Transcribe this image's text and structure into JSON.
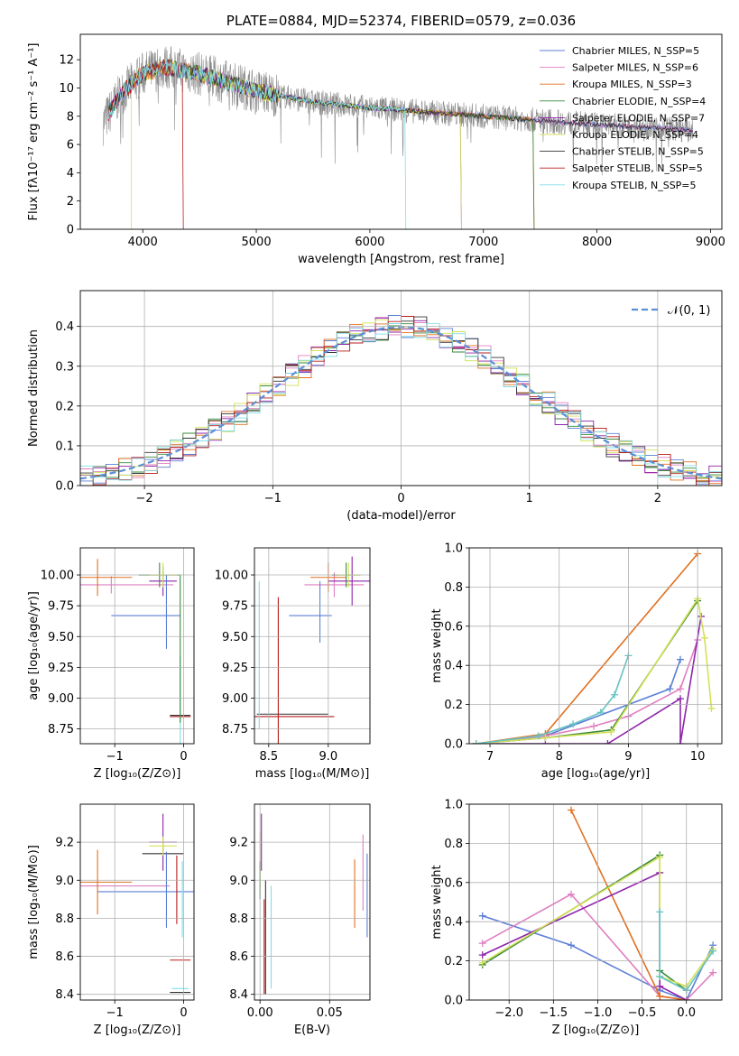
{
  "colors": [
    "#5b7fd6",
    "#e07fc1",
    "#b8860b",
    "#3a8a3a",
    "#8e24aa",
    "#d4e157",
    "#333333",
    "#b71c1c",
    "#80deea"
  ],
  "accent_series_colors": {
    "orange": "#e07020",
    "teal": "#66c2c2"
  },
  "chart_data": [
    {
      "id": "spectrum",
      "type": "line",
      "title": "PLATE=0884, MJD=52374, FIBERID=0579, z=0.036",
      "xlabel": "wavelength [Angstrom, rest frame]",
      "ylabel": "Flux [fλ10⁻¹⁷ erg cm⁻² s⁻¹ A⁻¹]",
      "xlim": [
        3450,
        9100
      ],
      "ylim": [
        0,
        13.8
      ],
      "xticks": [
        "4000",
        "5000",
        "6000",
        "7000",
        "8000",
        "9000"
      ],
      "yticks": [
        "0",
        "2",
        "4",
        "6",
        "8",
        "10",
        "12"
      ],
      "legend_position": "top-right",
      "legend": [
        "Chabrier MILES, N_SSP=5",
        "Salpeter MILES, N_SSP=6",
        "Kroupa MILES, N_SSP=3",
        "Chabrier ELODIE, N_SSP=4",
        "Salpeter ELODIE, N_SSP=7",
        "Kroupa ELODIE, N_SSP=4",
        "Chabrier STELIB, N_SSP=5",
        "Salpeter STELIB, N_SSP=5",
        "Kroupa STELIB, N_SSP=5"
      ],
      "data_range": [
        3650,
        8850
      ],
      "continuum": [
        [
          3650,
          7.5
        ],
        [
          3800,
          9.5
        ],
        [
          4000,
          11.0
        ],
        [
          4200,
          11.5
        ],
        [
          4500,
          11.0
        ],
        [
          5000,
          9.8
        ],
        [
          5500,
          9.0
        ],
        [
          6000,
          8.6
        ],
        [
          6500,
          8.3
        ],
        [
          7000,
          8.0
        ],
        [
          7500,
          7.7
        ],
        [
          8000,
          7.4
        ],
        [
          8500,
          7.2
        ],
        [
          8850,
          7.0
        ]
      ]
    },
    {
      "id": "residuals",
      "type": "line",
      "xlabel": "(data-model)/error",
      "ylabel": "Normed distribution",
      "xlim": [
        -2.5,
        2.5
      ],
      "ylim": [
        0,
        0.49
      ],
      "xticks": [
        "−2",
        "−1",
        "0",
        "1",
        "2"
      ],
      "yticks": [
        "0.0",
        "0.1",
        "0.2",
        "0.3",
        "0.4"
      ],
      "legend_position": "top-right",
      "legend": [
        "𝒩(0, 1)"
      ],
      "grid": true
    },
    {
      "id": "age_vs_Z",
      "type": "scatter",
      "xlabel": "Z [log₁₀(Z/Z⊙)]",
      "ylabel": "age  [log₁₀(age/yr)]",
      "xlim": [
        -1.5,
        0.15
      ],
      "ylim": [
        8.63,
        10.22
      ],
      "xticks": [
        "−1",
        "0"
      ],
      "yticks": [
        "8.75",
        "9.00",
        "9.25",
        "9.50",
        "9.75",
        "10.00"
      ],
      "grid": true,
      "points": [
        {
          "x": -0.55,
          "y": 9.67,
          "xerr": 0.5,
          "yerr": 0.0,
          "c": 0
        },
        {
          "x": -1.05,
          "y": 9.92,
          "xerr": 0.9,
          "yerr": 0.07,
          "c": 1
        },
        {
          "x": -1.25,
          "y": 9.98,
          "xerr": 0.5,
          "yerr": 0.15,
          "c": "orange"
        },
        {
          "x": -0.35,
          "y": 10.0,
          "xerr": 0.3,
          "yerr": 0.1,
          "c": 3
        },
        {
          "x": -0.3,
          "y": 9.95,
          "xerr": 0.2,
          "yerr": 0.12,
          "c": 4
        },
        {
          "x": -0.3,
          "y": 10.0,
          "xerr": 0.2,
          "yerr": 0.1,
          "c": 5
        },
        {
          "x": -0.05,
          "y": 8.86,
          "xerr": 0.15,
          "yerr": 0.0,
          "c": 6
        },
        {
          "x": -0.05,
          "y": 8.85,
          "xerr": 0.15,
          "yerr": 0.0,
          "c": 7
        },
        {
          "x": -0.05,
          "y": 8.85,
          "xerr": 0.0,
          "yerr": 0.5,
          "c": 8
        },
        {
          "x": -0.25,
          "y": 9.7,
          "xerr": 0.0,
          "yerr": 0.3,
          "c": 0
        },
        {
          "x": -0.05,
          "y": 9.4,
          "xerr": 0.0,
          "yerr": 0.6,
          "c": 3
        }
      ]
    },
    {
      "id": "age_vs_mass",
      "type": "scatter",
      "xlabel": "mass [log₁₀(M/M⊙)]",
      "ylabel": "",
      "xlim": [
        8.38,
        9.35
      ],
      "ylim": [
        8.63,
        10.22
      ],
      "xticks": [
        "8.5",
        "9.0"
      ],
      "yticks": [
        "8.75",
        "9.00",
        "9.25",
        "9.50",
        "9.75",
        "10.00"
      ],
      "grid": true,
      "points": [
        {
          "x": 8.85,
          "y": 9.67,
          "xerr": 0.18,
          "yerr": 0.0,
          "c": 0
        },
        {
          "x": 9.05,
          "y": 9.92,
          "xerr": 0.25,
          "yerr": 0.1,
          "c": 1
        },
        {
          "x": 9.0,
          "y": 9.98,
          "xerr": 0.15,
          "yerr": 0.12,
          "c": "orange"
        },
        {
          "x": 9.15,
          "y": 10.0,
          "xerr": 0.12,
          "yerr": 0.1,
          "c": 3
        },
        {
          "x": 9.2,
          "y": 9.95,
          "xerr": 0.2,
          "yerr": 0.2,
          "c": 4
        },
        {
          "x": 9.17,
          "y": 10.0,
          "xerr": 0.1,
          "yerr": 0.1,
          "c": 5
        },
        {
          "x": 8.7,
          "y": 8.87,
          "xerr": 0.3,
          "yerr": 0.0,
          "c": 6
        },
        {
          "x": 8.7,
          "y": 8.85,
          "xerr": 0.35,
          "yerr": 0.0,
          "c": 7
        },
        {
          "x": 8.42,
          "y": 9.35,
          "xerr": 0.0,
          "yerr": 0.6,
          "c": 8
        },
        {
          "x": 8.58,
          "y": 9.2,
          "xerr": 0.0,
          "yerr": 0.62,
          "c": 7
        },
        {
          "x": 8.93,
          "y": 9.7,
          "xerr": 0.0,
          "yerr": 0.25,
          "c": 0
        }
      ]
    },
    {
      "id": "weight_vs_age",
      "type": "line",
      "xlabel": "age  [log₁₀(age/yr)]",
      "ylabel": "mass weight",
      "xlim": [
        6.7,
        10.35
      ],
      "ylim": [
        0,
        1.0
      ],
      "xticks": [
        "7",
        "8",
        "9",
        "10"
      ],
      "yticks": [
        "0.0",
        "0.2",
        "0.4",
        "0.6",
        "0.8",
        "1.0"
      ],
      "grid": true,
      "series": [
        {
          "c": 0,
          "x": [
            6.8,
            7.8,
            9.6,
            9.75
          ],
          "y": [
            0.0,
            0.04,
            0.28,
            0.43
          ]
        },
        {
          "c": 1,
          "x": [
            6.8,
            7.8,
            8.5,
            9.0,
            9.75,
            10.0
          ],
          "y": [
            0.0,
            0.04,
            0.09,
            0.14,
            0.28,
            0.53
          ]
        },
        {
          "c": "orange",
          "x": [
            6.8,
            7.8,
            10.0
          ],
          "y": [
            0.0,
            0.05,
            0.97
          ]
        },
        {
          "c": 3,
          "x": [
            6.8,
            7.8,
            8.75,
            10.0
          ],
          "y": [
            0.0,
            0.03,
            0.07,
            0.73
          ]
        },
        {
          "c": 4,
          "x": [
            6.8,
            7.8,
            8.7,
            9.75,
            9.75,
            10.05
          ],
          "y": [
            0.0,
            0.0,
            0.0,
            0.23,
            0.0,
            0.65
          ]
        },
        {
          "c": 5,
          "x": [
            6.8,
            7.8,
            8.75,
            10.0,
            10.1,
            10.2
          ],
          "y": [
            0.0,
            0.03,
            0.06,
            0.74,
            0.54,
            0.18
          ]
        },
        {
          "c": "teal",
          "x": [
            6.8,
            7.7,
            8.2,
            8.6,
            8.8,
            9.0
          ],
          "y": [
            0.0,
            0.04,
            0.1,
            0.16,
            0.25,
            0.45
          ]
        }
      ]
    },
    {
      "id": "mass_vs_Z",
      "type": "scatter",
      "xlabel": "Z [log₁₀(Z/Z⊙)]",
      "ylabel": "mass [log₁₀(M/M⊙)]",
      "xlim": [
        -1.5,
        0.15
      ],
      "ylim": [
        8.37,
        9.4
      ],
      "xticks": [
        "−1",
        "0"
      ],
      "yticks": [
        "8.4",
        "8.6",
        "8.8",
        "9.0",
        "9.2"
      ],
      "grid": true,
      "points": [
        {
          "x": -0.55,
          "y": 8.94,
          "xerr": 0.7,
          "yerr": 0.0,
          "c": 0
        },
        {
          "x": -1.0,
          "y": 8.97,
          "xerr": 0.8,
          "yerr": 0.0,
          "c": 1
        },
        {
          "x": -1.25,
          "y": 8.99,
          "xerr": 0.5,
          "yerr": 0.17,
          "c": "orange"
        },
        {
          "x": -0.3,
          "y": 9.14,
          "xerr": 0.3,
          "yerr": 0.0,
          "c": 6
        },
        {
          "x": -0.3,
          "y": 9.2,
          "xerr": 0.2,
          "yerr": 0.15,
          "c": 4
        },
        {
          "x": -0.3,
          "y": 9.18,
          "xerr": 0.2,
          "yerr": 0.05,
          "c": 5
        },
        {
          "x": -0.05,
          "y": 8.41,
          "xerr": 0.15,
          "yerr": 0.0,
          "c": 6
        },
        {
          "x": -0.05,
          "y": 8.58,
          "xerr": 0.15,
          "yerr": 0.0,
          "c": 7
        },
        {
          "x": -0.05,
          "y": 8.43,
          "xerr": 0.12,
          "yerr": 0.0,
          "c": 8
        },
        {
          "x": -0.25,
          "y": 8.95,
          "xerr": 0.0,
          "yerr": 0.2,
          "c": 0
        },
        {
          "x": -0.1,
          "y": 8.95,
          "xerr": 0.0,
          "yerr": 0.18,
          "c": 7
        },
        {
          "x": -0.02,
          "y": 8.9,
          "xerr": 0.0,
          "yerr": 0.2,
          "c": 8
        }
      ]
    },
    {
      "id": "mass_vs_EBV",
      "type": "scatter",
      "xlabel": "E(B-V)",
      "ylabel": "",
      "xlim": [
        -0.004,
        0.079
      ],
      "ylim": [
        8.37,
        9.4
      ],
      "xticks": [
        "0.00",
        "0.05"
      ],
      "yticks": [
        "8.4",
        "8.6",
        "8.8",
        "9.0",
        "9.2"
      ],
      "grid": true,
      "points": [
        {
          "x": 0.001,
          "y": 9.2,
          "xerr": 0.0,
          "yerr": 0.15,
          "c": 4
        },
        {
          "x": 0.0,
          "y": 9.1,
          "xerr": 0.0,
          "yerr": 0.15,
          "c": 5
        },
        {
          "x": 0.0,
          "y": 9.0,
          "xerr": 0.0,
          "yerr": 0.1,
          "c": 3
        },
        {
          "x": 0.003,
          "y": 8.65,
          "xerr": 0.0,
          "yerr": 0.25,
          "c": 7
        },
        {
          "x": 0.004,
          "y": 8.7,
          "xerr": 0.0,
          "yerr": 0.3,
          "c": 6
        },
        {
          "x": 0.008,
          "y": 8.7,
          "xerr": 0.0,
          "yerr": 0.27,
          "c": 8
        },
        {
          "x": 0.068,
          "y": 8.93,
          "xerr": 0.0,
          "yerr": 0.18,
          "c": "orange"
        },
        {
          "x": 0.074,
          "y": 9.04,
          "xerr": 0.0,
          "yerr": 0.2,
          "c": 1
        },
        {
          "x": 0.077,
          "y": 8.92,
          "xerr": 0.0,
          "yerr": 0.22,
          "c": 0
        }
      ]
    },
    {
      "id": "weight_vs_Z",
      "type": "line",
      "xlabel": "Z [log₁₀(Z/Z⊙)]",
      "ylabel": "mass weight",
      "xlim": [
        -2.45,
        0.4
      ],
      "ylim": [
        0,
        1.0
      ],
      "xticks": [
        "−2.0",
        "−1.5",
        "−1.0",
        "−0.5",
        "0.0"
      ],
      "yticks": [
        "0.0",
        "0.2",
        "0.4",
        "0.6",
        "0.8",
        "1.0"
      ],
      "grid": true,
      "series": [
        {
          "c": 0,
          "x": [
            -2.3,
            -1.3,
            -0.3,
            0.0,
            0.3
          ],
          "y": [
            0.43,
            0.28,
            0.05,
            0.0,
            0.28
          ]
        },
        {
          "c": 1,
          "x": [
            -2.3,
            -1.3,
            -0.3,
            0.0,
            0.3
          ],
          "y": [
            0.29,
            0.54,
            0.02,
            0.0,
            0.14
          ]
        },
        {
          "c": "orange",
          "x": [
            -1.3,
            -0.3,
            0.0
          ],
          "y": [
            0.97,
            0.02,
            0.0
          ]
        },
        {
          "c": 3,
          "x": [
            -2.3,
            -0.3,
            -0.3,
            0.0
          ],
          "y": [
            0.18,
            0.74,
            0.15,
            0.05
          ]
        },
        {
          "c": 4,
          "x": [
            -2.3,
            -0.3,
            -0.3,
            0.0
          ],
          "y": [
            0.23,
            0.65,
            0.07,
            0.0
          ]
        },
        {
          "c": 5,
          "x": [
            -2.3,
            -0.3,
            -0.3,
            0.0,
            0.3
          ],
          "y": [
            0.19,
            0.73,
            0.12,
            0.07,
            0.26
          ]
        },
        {
          "c": "teal",
          "x": [
            -0.3,
            -0.3,
            0.0,
            0.3
          ],
          "y": [
            0.45,
            0.12,
            0.05,
            0.25
          ]
        }
      ]
    }
  ]
}
